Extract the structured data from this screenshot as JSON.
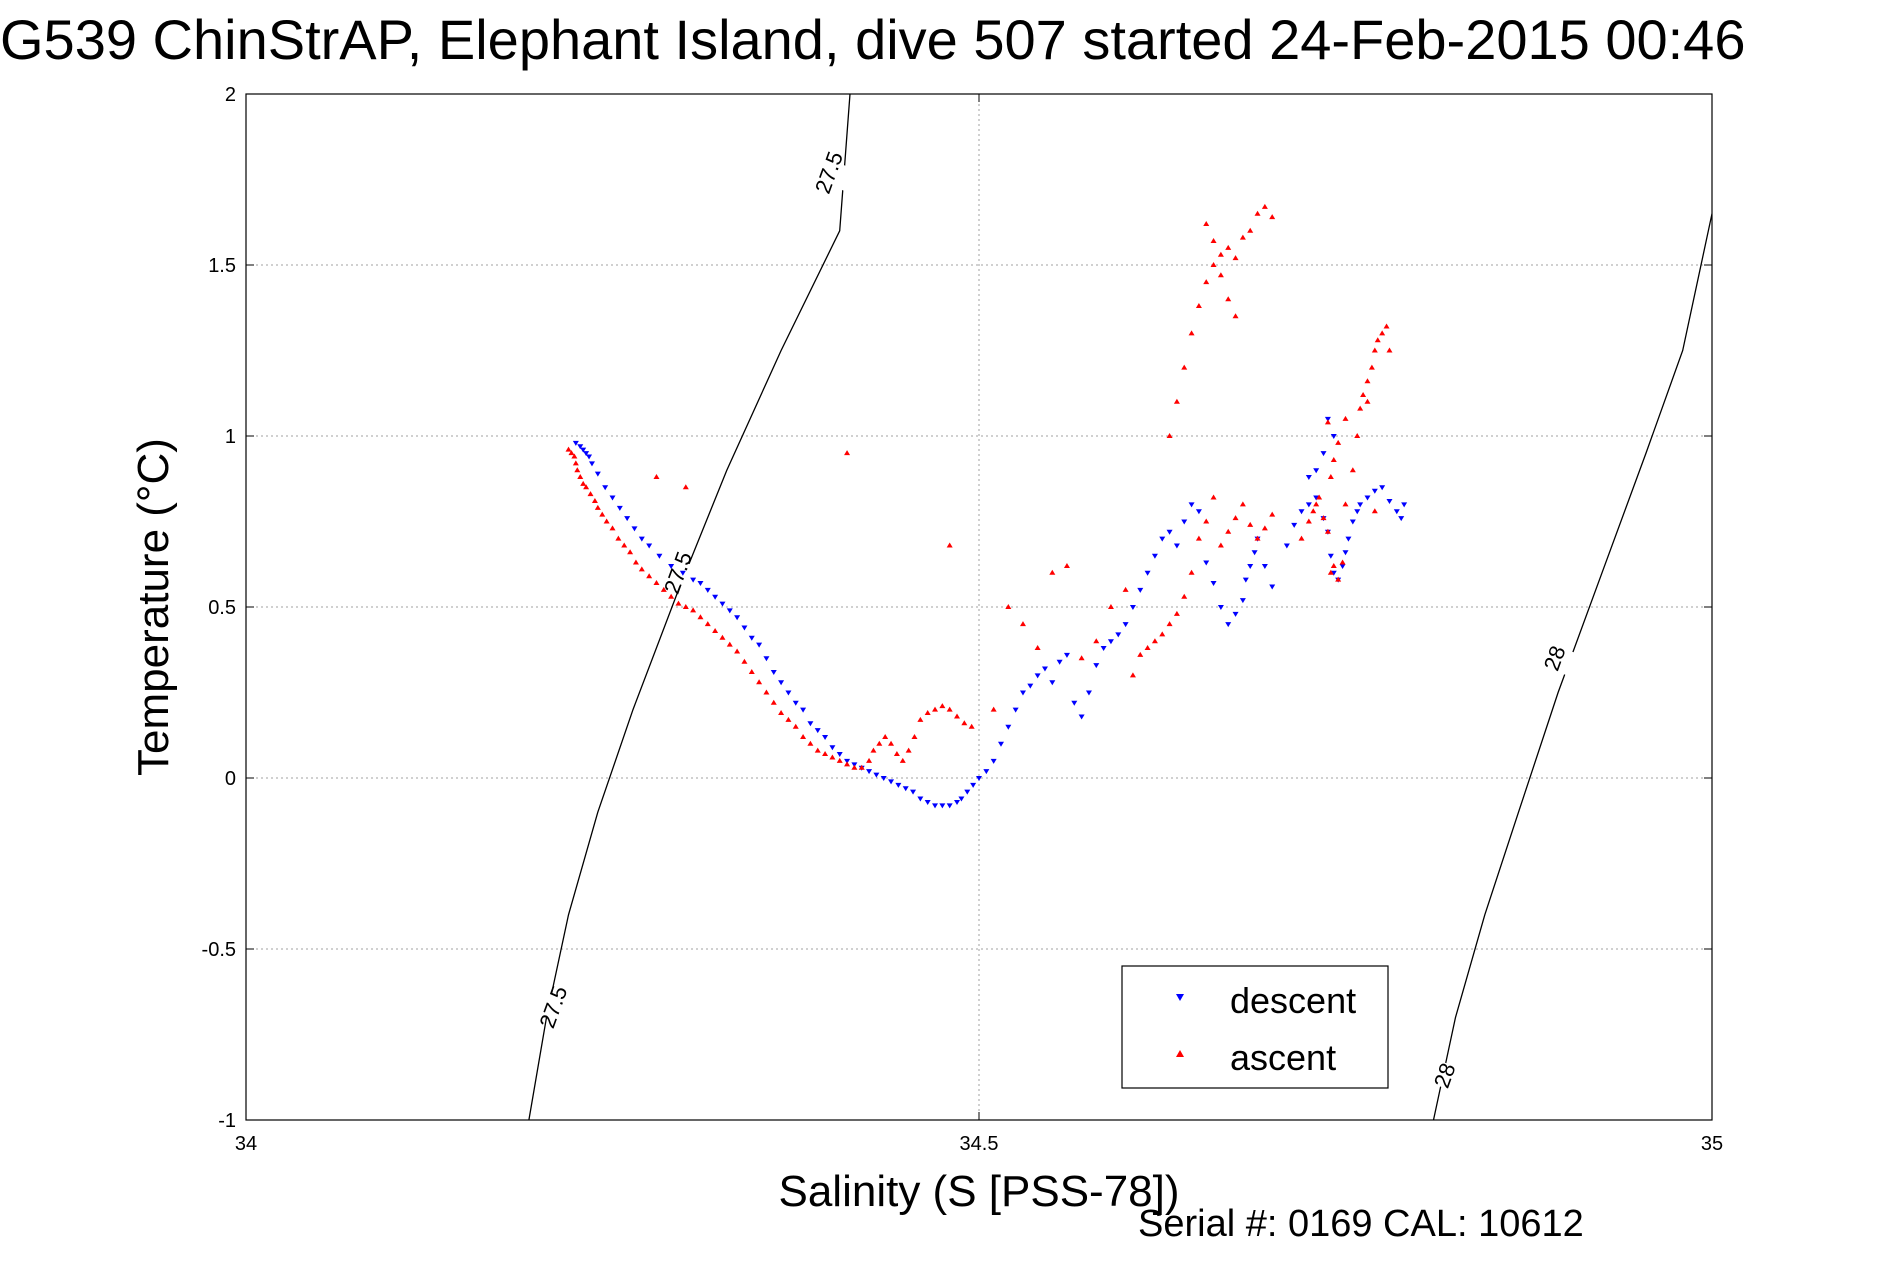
{
  "title": "G539 ChinStrAP, Elephant Island, dive 507 started 24-Feb-2015 00:46",
  "footer": "Serial #: 0169 CAL: 10612",
  "colors": {
    "descent": "#0000ff",
    "ascent": "#ff0000",
    "grid": "#a0a0a0",
    "contour": "#000000"
  },
  "chart_data": {
    "type": "scatter",
    "title": "G539 ChinStrAP, Elephant Island, dive 507 started 24-Feb-2015 00:46",
    "xlabel": "Salinity (S [PSS-78])",
    "ylabel": "Temperature (°C)",
    "xlim": [
      34,
      35
    ],
    "ylim": [
      -1,
      2
    ],
    "xticks": [
      34,
      34.5,
      35
    ],
    "xtick_labels": [
      "34",
      "34.5",
      "35"
    ],
    "yticks": [
      2,
      1.5,
      1,
      0.5,
      0,
      -0.5,
      -1
    ],
    "ytick_labels": [
      "2",
      "1.5",
      "1",
      "0.5",
      "0",
      "-0.5",
      "-1"
    ],
    "grid": true,
    "legend_position": "bottom-right",
    "contours": [
      {
        "label": "27.5",
        "points": [
          [
            34.193,
            -1.0
          ],
          [
            34.205,
            -0.7
          ],
          [
            34.22,
            -0.4
          ],
          [
            34.24,
            -0.1
          ],
          [
            34.264,
            0.2
          ],
          [
            34.295,
            0.55
          ],
          [
            34.328,
            0.9
          ],
          [
            34.365,
            1.25
          ],
          [
            34.405,
            1.6
          ],
          [
            34.412,
            2.0
          ]
        ],
        "label_positions": [
          [
            34.21,
            -0.67
          ],
          [
            34.295,
            0.6
          ],
          [
            34.398,
            1.77
          ]
        ]
      },
      {
        "label": "28",
        "points": [
          [
            34.81,
            -1.0
          ],
          [
            34.825,
            -0.7
          ],
          [
            34.845,
            -0.4
          ],
          [
            34.868,
            -0.1
          ],
          [
            34.895,
            0.25
          ],
          [
            34.925,
            0.6
          ],
          [
            34.955,
            0.95
          ],
          [
            34.98,
            1.25
          ],
          [
            35.0,
            1.65
          ]
        ],
        "label_positions": [
          [
            34.818,
            -0.87
          ],
          [
            34.893,
            0.35
          ]
        ]
      }
    ],
    "series": [
      {
        "name": "descent",
        "marker": "triangle-down",
        "color": "#0000ff",
        "points": [
          [
            34.225,
            0.98
          ],
          [
            34.228,
            0.97
          ],
          [
            34.23,
            0.96
          ],
          [
            34.232,
            0.95
          ],
          [
            34.234,
            0.94
          ],
          [
            34.236,
            0.92
          ],
          [
            34.24,
            0.89
          ],
          [
            34.245,
            0.85
          ],
          [
            34.25,
            0.82
          ],
          [
            34.255,
            0.79
          ],
          [
            34.26,
            0.76
          ],
          [
            34.265,
            0.73
          ],
          [
            34.27,
            0.7
          ],
          [
            34.275,
            0.68
          ],
          [
            34.282,
            0.65
          ],
          [
            34.29,
            0.62
          ],
          [
            34.298,
            0.6
          ],
          [
            34.305,
            0.58
          ],
          [
            34.31,
            0.57
          ],
          [
            34.315,
            0.55
          ],
          [
            34.32,
            0.53
          ],
          [
            34.325,
            0.51
          ],
          [
            34.33,
            0.49
          ],
          [
            34.335,
            0.47
          ],
          [
            34.34,
            0.44
          ],
          [
            34.345,
            0.41
          ],
          [
            34.35,
            0.39
          ],
          [
            34.355,
            0.35
          ],
          [
            34.36,
            0.31
          ],
          [
            34.365,
            0.28
          ],
          [
            34.37,
            0.25
          ],
          [
            34.375,
            0.22
          ],
          [
            34.38,
            0.2
          ],
          [
            34.385,
            0.16
          ],
          [
            34.39,
            0.14
          ],
          [
            34.395,
            0.12
          ],
          [
            34.4,
            0.09
          ],
          [
            34.405,
            0.07
          ],
          [
            34.41,
            0.05
          ],
          [
            34.415,
            0.04
          ],
          [
            34.42,
            0.03
          ],
          [
            34.425,
            0.02
          ],
          [
            34.43,
            0.01
          ],
          [
            34.435,
            0.0
          ],
          [
            34.44,
            -0.01
          ],
          [
            34.445,
            -0.02
          ],
          [
            34.45,
            -0.03
          ],
          [
            34.455,
            -0.04
          ],
          [
            34.46,
            -0.06
          ],
          [
            34.465,
            -0.07
          ],
          [
            34.47,
            -0.08
          ],
          [
            34.475,
            -0.08
          ],
          [
            34.48,
            -0.08
          ],
          [
            34.485,
            -0.07
          ],
          [
            34.488,
            -0.06
          ],
          [
            34.492,
            -0.04
          ],
          [
            34.496,
            -0.02
          ],
          [
            34.5,
            0.0
          ],
          [
            34.505,
            0.02
          ],
          [
            34.51,
            0.05
          ],
          [
            34.515,
            0.1
          ],
          [
            34.52,
            0.15
          ],
          [
            34.525,
            0.2
          ],
          [
            34.53,
            0.25
          ],
          [
            34.535,
            0.27
          ],
          [
            34.54,
            0.3
          ],
          [
            34.545,
            0.32
          ],
          [
            34.55,
            0.28
          ],
          [
            34.555,
            0.34
          ],
          [
            34.56,
            0.36
          ],
          [
            34.565,
            0.22
          ],
          [
            34.57,
            0.18
          ],
          [
            34.575,
            0.25
          ],
          [
            34.58,
            0.33
          ],
          [
            34.585,
            0.38
          ],
          [
            34.59,
            0.4
          ],
          [
            34.595,
            0.42
          ],
          [
            34.6,
            0.45
          ],
          [
            34.605,
            0.5
          ],
          [
            34.61,
            0.55
          ],
          [
            34.615,
            0.6
          ],
          [
            34.62,
            0.65
          ],
          [
            34.625,
            0.7
          ],
          [
            34.63,
            0.72
          ],
          [
            34.635,
            0.68
          ],
          [
            34.64,
            0.75
          ],
          [
            34.645,
            0.8
          ],
          [
            34.65,
            0.78
          ],
          [
            34.655,
            0.63
          ],
          [
            34.66,
            0.57
          ],
          [
            34.665,
            0.5
          ],
          [
            34.67,
            0.45
          ],
          [
            34.675,
            0.48
          ],
          [
            34.68,
            0.52
          ],
          [
            34.682,
            0.58
          ],
          [
            34.685,
            0.62
          ],
          [
            34.688,
            0.66
          ],
          [
            34.69,
            0.7
          ],
          [
            34.695,
            0.62
          ],
          [
            34.7,
            0.56
          ],
          [
            34.71,
            0.68
          ],
          [
            34.715,
            0.74
          ],
          [
            34.72,
            0.78
          ],
          [
            34.725,
            0.8
          ],
          [
            34.73,
            0.82
          ],
          [
            34.735,
            0.76
          ],
          [
            34.738,
            0.72
          ],
          [
            34.74,
            0.65
          ],
          [
            34.742,
            0.6
          ],
          [
            34.745,
            0.58
          ],
          [
            34.748,
            0.62
          ],
          [
            34.75,
            0.66
          ],
          [
            34.752,
            0.7
          ],
          [
            34.755,
            0.75
          ],
          [
            34.758,
            0.78
          ],
          [
            34.76,
            0.8
          ],
          [
            34.765,
            0.82
          ],
          [
            34.77,
            0.84
          ],
          [
            34.775,
            0.85
          ],
          [
            34.78,
            0.81
          ],
          [
            34.785,
            0.78
          ],
          [
            34.788,
            0.76
          ],
          [
            34.735,
            0.95
          ],
          [
            34.738,
            1.05
          ],
          [
            34.742,
            1.0
          ],
          [
            34.73,
            0.9
          ],
          [
            34.725,
            0.88
          ],
          [
            34.79,
            0.8
          ]
        ]
      },
      {
        "name": "ascent",
        "marker": "triangle-up",
        "color": "#ff0000",
        "points": [
          [
            34.22,
            0.96
          ],
          [
            34.222,
            0.95
          ],
          [
            34.224,
            0.94
          ],
          [
            34.225,
            0.92
          ],
          [
            34.226,
            0.9
          ],
          [
            34.228,
            0.88
          ],
          [
            34.23,
            0.86
          ],
          [
            34.232,
            0.85
          ],
          [
            34.235,
            0.83
          ],
          [
            34.238,
            0.81
          ],
          [
            34.24,
            0.79
          ],
          [
            34.243,
            0.77
          ],
          [
            34.246,
            0.75
          ],
          [
            34.25,
            0.73
          ],
          [
            34.254,
            0.7
          ],
          [
            34.258,
            0.68
          ],
          [
            34.262,
            0.66
          ],
          [
            34.266,
            0.63
          ],
          [
            34.27,
            0.61
          ],
          [
            34.275,
            0.59
          ],
          [
            34.28,
            0.57
          ],
          [
            34.285,
            0.55
          ],
          [
            34.29,
            0.53
          ],
          [
            34.295,
            0.51
          ],
          [
            34.3,
            0.5
          ],
          [
            34.305,
            0.49
          ],
          [
            34.31,
            0.47
          ],
          [
            34.315,
            0.45
          ],
          [
            34.32,
            0.43
          ],
          [
            34.325,
            0.41
          ],
          [
            34.33,
            0.39
          ],
          [
            34.335,
            0.37
          ],
          [
            34.34,
            0.34
          ],
          [
            34.345,
            0.31
          ],
          [
            34.35,
            0.28
          ],
          [
            34.355,
            0.25
          ],
          [
            34.36,
            0.22
          ],
          [
            34.365,
            0.19
          ],
          [
            34.37,
            0.17
          ],
          [
            34.375,
            0.15
          ],
          [
            34.38,
            0.12
          ],
          [
            34.385,
            0.1
          ],
          [
            34.39,
            0.08
          ],
          [
            34.395,
            0.07
          ],
          [
            34.4,
            0.06
          ],
          [
            34.405,
            0.05
          ],
          [
            34.41,
            0.04
          ],
          [
            34.415,
            0.03
          ],
          [
            34.42,
            0.03
          ],
          [
            34.425,
            0.05
          ],
          [
            34.428,
            0.08
          ],
          [
            34.432,
            0.1
          ],
          [
            34.436,
            0.12
          ],
          [
            34.44,
            0.1
          ],
          [
            34.444,
            0.07
          ],
          [
            34.448,
            0.05
          ],
          [
            34.452,
            0.08
          ],
          [
            34.456,
            0.12
          ],
          [
            34.46,
            0.17
          ],
          [
            34.465,
            0.19
          ],
          [
            34.47,
            0.2
          ],
          [
            34.475,
            0.21
          ],
          [
            34.48,
            0.2
          ],
          [
            34.485,
            0.18
          ],
          [
            34.49,
            0.16
          ],
          [
            34.495,
            0.15
          ],
          [
            34.3,
            0.85
          ],
          [
            34.28,
            0.88
          ],
          [
            34.41,
            0.95
          ],
          [
            34.48,
            0.68
          ],
          [
            34.51,
            0.2
          ],
          [
            34.52,
            0.5
          ],
          [
            34.53,
            0.45
          ],
          [
            34.54,
            0.38
          ],
          [
            34.55,
            0.6
          ],
          [
            34.56,
            0.62
          ],
          [
            34.57,
            0.35
          ],
          [
            34.58,
            0.4
          ],
          [
            34.59,
            0.5
          ],
          [
            34.6,
            0.55
          ],
          [
            34.605,
            0.3
          ],
          [
            34.61,
            0.36
          ],
          [
            34.615,
            0.38
          ],
          [
            34.62,
            0.4
          ],
          [
            34.625,
            0.42
          ],
          [
            34.63,
            0.45
          ],
          [
            34.635,
            0.48
          ],
          [
            34.64,
            0.53
          ],
          [
            34.645,
            0.6
          ],
          [
            34.65,
            0.7
          ],
          [
            34.655,
            0.75
          ],
          [
            34.66,
            0.82
          ],
          [
            34.665,
            0.68
          ],
          [
            34.67,
            0.72
          ],
          [
            34.675,
            0.76
          ],
          [
            34.68,
            0.8
          ],
          [
            34.685,
            0.74
          ],
          [
            34.69,
            0.7
          ],
          [
            34.695,
            0.73
          ],
          [
            34.7,
            0.77
          ],
          [
            34.63,
            1.0
          ],
          [
            34.635,
            1.1
          ],
          [
            34.64,
            1.2
          ],
          [
            34.645,
            1.3
          ],
          [
            34.65,
            1.38
          ],
          [
            34.655,
            1.45
          ],
          [
            34.66,
            1.5
          ],
          [
            34.665,
            1.47
          ],
          [
            34.67,
            1.55
          ],
          [
            34.675,
            1.52
          ],
          [
            34.68,
            1.58
          ],
          [
            34.685,
            1.6
          ],
          [
            34.69,
            1.65
          ],
          [
            34.695,
            1.67
          ],
          [
            34.7,
            1.64
          ],
          [
            34.655,
            1.62
          ],
          [
            34.66,
            1.57
          ],
          [
            34.665,
            1.53
          ],
          [
            34.67,
            1.4
          ],
          [
            34.675,
            1.35
          ],
          [
            34.72,
            0.7
          ],
          [
            34.725,
            0.75
          ],
          [
            34.728,
            0.78
          ],
          [
            34.73,
            0.8
          ],
          [
            34.732,
            0.82
          ],
          [
            34.735,
            0.76
          ],
          [
            34.738,
            0.72
          ],
          [
            34.74,
            0.6
          ],
          [
            34.742,
            0.62
          ],
          [
            34.745,
            0.58
          ],
          [
            34.748,
            0.63
          ],
          [
            34.75,
            0.8
          ],
          [
            34.755,
            0.9
          ],
          [
            34.758,
            1.0
          ],
          [
            34.76,
            1.08
          ],
          [
            34.762,
            1.12
          ],
          [
            34.765,
            1.16
          ],
          [
            34.768,
            1.2
          ],
          [
            34.77,
            1.25
          ],
          [
            34.772,
            1.28
          ],
          [
            34.775,
            1.3
          ],
          [
            34.778,
            1.32
          ],
          [
            34.78,
            1.25
          ],
          [
            34.75,
            1.05
          ],
          [
            34.745,
            0.98
          ],
          [
            34.742,
            0.93
          ],
          [
            34.74,
            0.88
          ],
          [
            34.738,
            1.04
          ],
          [
            34.765,
            1.1
          ],
          [
            34.77,
            0.78
          ]
        ]
      }
    ]
  }
}
